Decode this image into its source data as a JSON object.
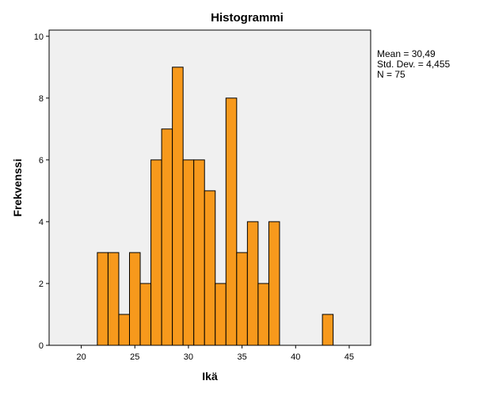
{
  "chart_data": {
    "type": "bar",
    "title": "Histogrammi",
    "xlabel": "Ikä",
    "ylabel": "Frekvenssi",
    "xlim": [
      17,
      47
    ],
    "ylim": [
      0,
      10.2
    ],
    "xticks": [
      20,
      25,
      30,
      35,
      40,
      45
    ],
    "yticks": [
      0,
      2,
      4,
      6,
      8,
      10
    ],
    "bin_width": 1,
    "bins": [
      {
        "start": 21.5,
        "end": 22.5,
        "value": 3
      },
      {
        "start": 22.5,
        "end": 23.5,
        "value": 3
      },
      {
        "start": 23.5,
        "end": 24.5,
        "value": 1
      },
      {
        "start": 24.5,
        "end": 25.5,
        "value": 3
      },
      {
        "start": 25.5,
        "end": 26.5,
        "value": 2
      },
      {
        "start": 26.5,
        "end": 27.5,
        "value": 6
      },
      {
        "start": 27.5,
        "end": 28.5,
        "value": 7
      },
      {
        "start": 28.5,
        "end": 29.5,
        "value": 9
      },
      {
        "start": 29.5,
        "end": 30.5,
        "value": 6
      },
      {
        "start": 30.5,
        "end": 31.5,
        "value": 6
      },
      {
        "start": 31.5,
        "end": 32.5,
        "value": 5
      },
      {
        "start": 32.5,
        "end": 33.5,
        "value": 2
      },
      {
        "start": 33.5,
        "end": 34.5,
        "value": 8
      },
      {
        "start": 34.5,
        "end": 35.5,
        "value": 3
      },
      {
        "start": 35.5,
        "end": 36.5,
        "value": 4
      },
      {
        "start": 36.5,
        "end": 37.5,
        "value": 2
      },
      {
        "start": 37.5,
        "end": 38.5,
        "value": 4
      },
      {
        "start": 42.5,
        "end": 43.5,
        "value": 1
      }
    ],
    "stats": {
      "mean": "Mean = 30,49",
      "std": "Std. Dev. = 4,455",
      "n": "N = 75"
    },
    "colors": {
      "bar_fill": "#f7991c",
      "bar_stroke": "#000000",
      "plot_background": "#f0f0f0"
    },
    "grid": false
  }
}
